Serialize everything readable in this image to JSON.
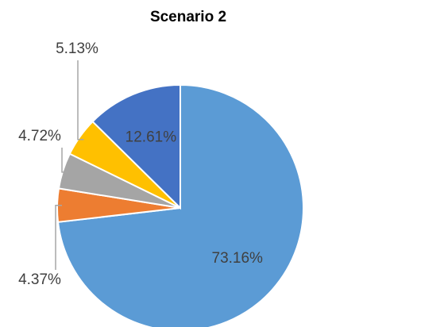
{
  "chart_data": {
    "type": "pie",
    "title": "Scenario 2",
    "values": [
      73.16,
      4.37,
      4.72,
      5.13,
      12.61
    ],
    "value_labels": [
      "73.16%",
      "4.37%",
      "4.72%",
      "5.13%",
      "12.61%"
    ],
    "colors": [
      "#5B9BD5",
      "#ED7D31",
      "#A5A5A5",
      "#FFC000",
      "#4472C4"
    ]
  }
}
